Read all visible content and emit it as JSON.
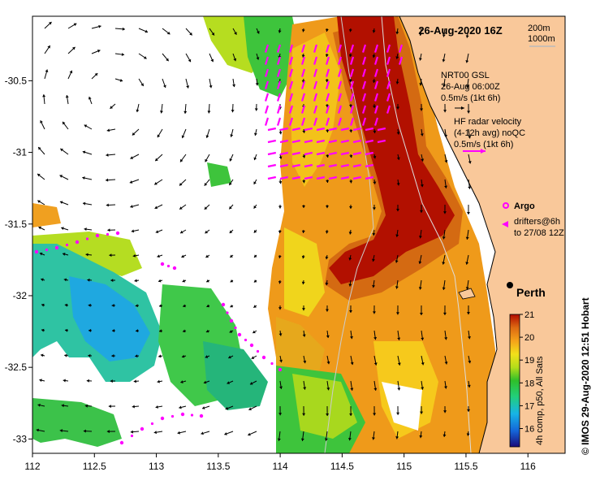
{
  "map": {
    "title": "26-Aug-2020 16Z",
    "depth_contours": [
      "200m",
      "1000m"
    ],
    "x_ticks": [
      "112",
      "112.5",
      "113",
      "113.5",
      "114",
      "114.5",
      "115",
      "115.5",
      "116"
    ],
    "y_ticks": [
      "-30.5",
      "-31",
      "-31.5",
      "-32",
      "-32.5",
      "-33"
    ],
    "lon_range": [
      112,
      116.3
    ],
    "lat_range": [
      -33.1,
      -30.05
    ],
    "nrt_label_1": "NRT00 GSL",
    "nrt_label_2": "26-Aug 06:00Z",
    "nrt_label_3": "0.5m/s (1kt 6h)",
    "hf_label_1": "HF radar velocity",
    "hf_label_2": "(4-12h avg) noQC",
    "hf_label_3": "0.5m/s (1kt 6h)",
    "argo_label": "Argo",
    "drifter_label_1": "drifters@6h",
    "drifter_label_2": "to 27/08 12Z",
    "city": "Perth",
    "colorbar_ticks": [
      "21",
      "20",
      "19",
      "18",
      "17",
      "16"
    ],
    "colorbar_range": [
      15.2,
      21
    ],
    "colorbar_caption": "4h comp, p50, All Sats",
    "credit": "© IMOS 29-Aug-2020 12:51 Hobart",
    "colors": {
      "land": "#f9c89a",
      "current_arrow": "#000000",
      "hf_arrow": "#ff00ff",
      "drifter": "#ff00ff"
    }
  }
}
